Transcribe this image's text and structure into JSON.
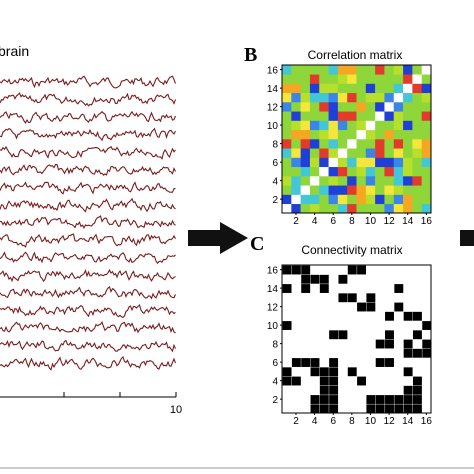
{
  "panels": {
    "a": {
      "title": "brain",
      "x_ticks": [
        "10"
      ],
      "trace_count": 17,
      "trace_color": "#7a1c1c"
    },
    "b": {
      "letter": "B",
      "title": "Correlation matrix",
      "x_ticks": [
        "2",
        "4",
        "6",
        "8",
        "10",
        "12",
        "14",
        "16"
      ],
      "y_ticks": [
        "2",
        "4",
        "6",
        "8",
        "10",
        "12",
        "14",
        "16"
      ],
      "matrix_size": 16
    },
    "c": {
      "letter": "C",
      "title": "Connectivity matrix",
      "x_ticks": [
        "2",
        "4",
        "6",
        "8",
        "10",
        "12",
        "14",
        "16"
      ],
      "y_ticks": [
        "2",
        "4",
        "6",
        "8",
        "10",
        "12",
        "14",
        "16"
      ],
      "matrix_size": 16,
      "connections": [
        [
          1,
          4
        ],
        [
          1,
          5
        ],
        [
          1,
          6
        ],
        [
          1,
          10
        ],
        [
          1,
          11
        ],
        [
          1,
          12
        ],
        [
          1,
          13
        ],
        [
          1,
          14
        ],
        [
          1,
          15
        ],
        [
          2,
          4
        ],
        [
          2,
          5
        ],
        [
          2,
          6
        ],
        [
          2,
          10
        ],
        [
          2,
          11
        ],
        [
          2,
          12
        ],
        [
          2,
          13
        ],
        [
          2,
          14
        ],
        [
          2,
          15
        ],
        [
          3,
          5
        ],
        [
          3,
          6
        ],
        [
          3,
          14
        ],
        [
          3,
          15
        ],
        [
          4,
          1
        ],
        [
          4,
          2
        ],
        [
          4,
          5
        ],
        [
          4,
          6
        ],
        [
          4,
          9
        ],
        [
          4,
          15
        ],
        [
          5,
          1
        ],
        [
          5,
          4
        ],
        [
          5,
          5
        ],
        [
          5,
          6
        ],
        [
          5,
          8
        ],
        [
          5,
          14
        ],
        [
          6,
          2
        ],
        [
          6,
          3
        ],
        [
          6,
          4
        ],
        [
          6,
          6
        ],
        [
          6,
          11
        ],
        [
          6,
          12
        ],
        [
          7,
          14
        ],
        [
          7,
          15
        ],
        [
          7,
          16
        ],
        [
          8,
          11
        ],
        [
          8,
          12
        ],
        [
          8,
          14
        ],
        [
          8,
          16
        ],
        [
          9,
          6
        ],
        [
          9,
          7
        ],
        [
          9,
          12
        ],
        [
          9,
          15
        ],
        [
          10,
          1
        ],
        [
          10,
          16
        ],
        [
          11,
          12
        ],
        [
          11,
          14
        ],
        [
          11,
          15
        ],
        [
          12,
          9
        ],
        [
          12,
          10
        ],
        [
          12,
          13
        ],
        [
          13,
          7
        ],
        [
          13,
          8
        ],
        [
          13,
          10
        ],
        [
          14,
          1
        ],
        [
          14,
          3
        ],
        [
          14,
          5
        ],
        [
          14,
          13
        ],
        [
          15,
          3
        ],
        [
          15,
          4
        ],
        [
          15,
          5
        ],
        [
          15,
          7
        ],
        [
          16,
          1
        ],
        [
          16,
          2
        ],
        [
          16,
          3
        ],
        [
          16,
          8
        ],
        [
          16,
          9
        ]
      ],
      "cell_color": "#000000"
    },
    "correlation_palette": [
      "#1f3fd6",
      "#3a86e8",
      "#43c6d6",
      "#8fd63a",
      "#b8e02a",
      "#ffffff",
      "#f5e63a",
      "#f5a623",
      "#e33b2b"
    ]
  },
  "arrows": {
    "color": "#111111"
  }
}
